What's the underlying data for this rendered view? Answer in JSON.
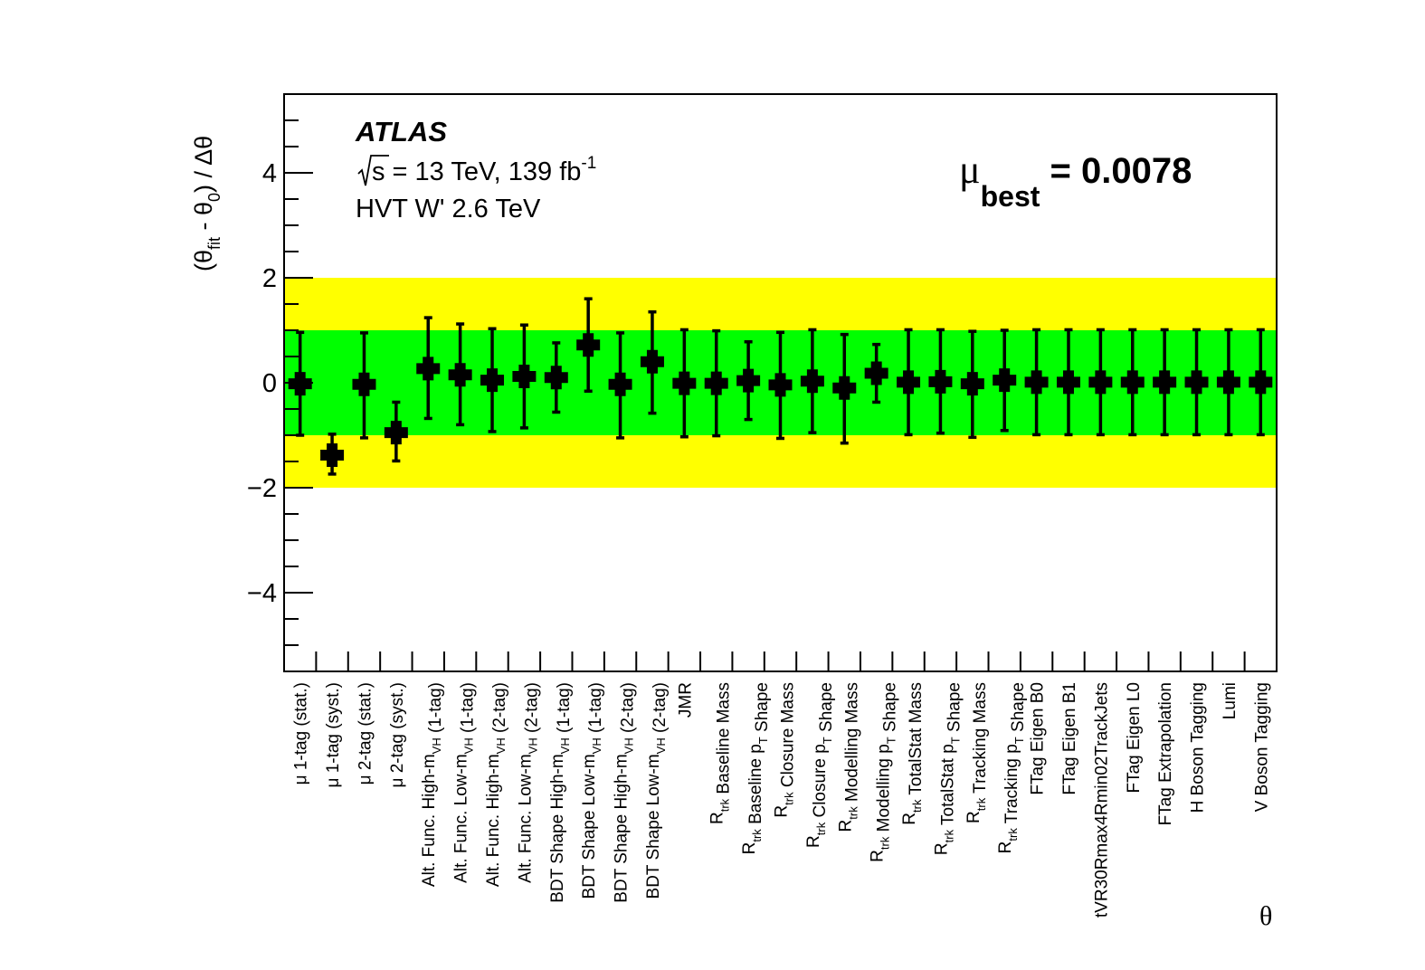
{
  "chart_data": {
    "type": "scatter",
    "experiment": "ATLAS",
    "energy_prefix": "s",
    "energy_text": " = 13 TeV, 139 fb",
    "energy_superscript": "-1",
    "signal": "HVT W' 2.6 TeV",
    "mu_symbol": "μ",
    "mu_subscript": "best",
    "mu_value_text": " = 0.0078",
    "ylabel": {
      "open": "(θ",
      "fit_sub": "fit",
      "mid": " - θ",
      "zero_sub": "0",
      "close": ") / Δθ"
    },
    "xlabel": "θ",
    "ylim": [
      -5.5,
      5.5
    ],
    "yticks": [
      -4,
      -2,
      0,
      2,
      4
    ],
    "ytick_labels": [
      "−4",
      "−2",
      "0",
      "2",
      "4"
    ],
    "bands": [
      {
        "name": "±2σ",
        "low": -2,
        "high": 2,
        "color": "#ffff00"
      },
      {
        "name": "±1σ",
        "low": -1,
        "high": 1,
        "color": "#00ff00"
      }
    ],
    "marker_color": "#000000",
    "frame_color": "#000000",
    "categories": [
      {
        "label": [
          {
            "t": "μ 1-tag (stat.)"
          }
        ]
      },
      {
        "label": [
          {
            "t": "μ 1-tag (syst.)"
          }
        ]
      },
      {
        "label": [
          {
            "t": "μ 2-tag (stat.)"
          }
        ]
      },
      {
        "label": [
          {
            "t": "μ 2-tag (syst.)"
          }
        ]
      },
      {
        "label": [
          {
            "t": "Alt. Func. High-m"
          },
          {
            "t": "VH",
            "s": "sub"
          },
          {
            "t": " (1-tag)"
          }
        ]
      },
      {
        "label": [
          {
            "t": "Alt. Func. Low-m"
          },
          {
            "t": "VH",
            "s": "sub"
          },
          {
            "t": " (1-tag)"
          }
        ]
      },
      {
        "label": [
          {
            "t": "Alt. Func. High-m"
          },
          {
            "t": "VH",
            "s": "sub"
          },
          {
            "t": " (2-tag)"
          }
        ]
      },
      {
        "label": [
          {
            "t": "Alt. Func. Low-m"
          },
          {
            "t": "VH",
            "s": "sub"
          },
          {
            "t": " (2-tag)"
          }
        ]
      },
      {
        "label": [
          {
            "t": "BDT Shape High-m"
          },
          {
            "t": "VH",
            "s": "sub"
          },
          {
            "t": " (1-tag)"
          }
        ]
      },
      {
        "label": [
          {
            "t": "BDT Shape Low-m"
          },
          {
            "t": "VH",
            "s": "sub"
          },
          {
            "t": " (1-tag)"
          }
        ]
      },
      {
        "label": [
          {
            "t": "BDT Shape High-m"
          },
          {
            "t": "VH",
            "s": "sub"
          },
          {
            "t": " (2-tag)"
          }
        ]
      },
      {
        "label": [
          {
            "t": "BDT Shape Low-m"
          },
          {
            "t": "VH",
            "s": "sub"
          },
          {
            "t": " (2-tag)"
          }
        ]
      },
      {
        "label": [
          {
            "t": "JMR"
          }
        ]
      },
      {
        "label": [
          {
            "t": "R"
          },
          {
            "t": "trk",
            "s": "sub"
          },
          {
            "t": " Baseline Mass"
          }
        ]
      },
      {
        "label": [
          {
            "t": "R"
          },
          {
            "t": "trk",
            "s": "sub"
          },
          {
            "t": " Baseline p"
          },
          {
            "t": "T",
            "s": "sub"
          },
          {
            "t": " Shape"
          }
        ]
      },
      {
        "label": [
          {
            "t": "R"
          },
          {
            "t": "trk",
            "s": "sub"
          },
          {
            "t": " Closure Mass"
          }
        ]
      },
      {
        "label": [
          {
            "t": "R"
          },
          {
            "t": "trk",
            "s": "sub"
          },
          {
            "t": " Closure p"
          },
          {
            "t": "T",
            "s": "sub"
          },
          {
            "t": " Shape"
          }
        ]
      },
      {
        "label": [
          {
            "t": "R"
          },
          {
            "t": "trk",
            "s": "sub"
          },
          {
            "t": " Modelling Mass"
          }
        ]
      },
      {
        "label": [
          {
            "t": "R"
          },
          {
            "t": "trk",
            "s": "sub"
          },
          {
            "t": " Modelling p"
          },
          {
            "t": "T",
            "s": "sub"
          },
          {
            "t": " Shape"
          }
        ]
      },
      {
        "label": [
          {
            "t": "R"
          },
          {
            "t": "trk",
            "s": "sub"
          },
          {
            "t": " TotalStat Mass"
          }
        ]
      },
      {
        "label": [
          {
            "t": "R"
          },
          {
            "t": "trk",
            "s": "sub"
          },
          {
            "t": " TotalStat p"
          },
          {
            "t": "T",
            "s": "sub"
          },
          {
            "t": " Shape"
          }
        ]
      },
      {
        "label": [
          {
            "t": "R"
          },
          {
            "t": "trk",
            "s": "sub"
          },
          {
            "t": " Tracking Mass"
          }
        ]
      },
      {
        "label": [
          {
            "t": "R"
          },
          {
            "t": "trk",
            "s": "sub"
          },
          {
            "t": " Tracking p"
          },
          {
            "t": "T",
            "s": "sub"
          },
          {
            "t": " Shape"
          }
        ]
      },
      {
        "label": [
          {
            "t": "FTag Eigen B0"
          }
        ]
      },
      {
        "label": [
          {
            "t": "FTag Eigen B1"
          }
        ]
      },
      {
        "label": [
          {
            "t": "tVR30Rmax4Rmin02TrackJets"
          }
        ]
      },
      {
        "label": [
          {
            "t": "FTag Eigen L0"
          }
        ]
      },
      {
        "label": [
          {
            "t": "FTag Extrapolation"
          }
        ]
      },
      {
        "label": [
          {
            "t": "H Boson Tagging"
          }
        ]
      },
      {
        "label": [
          {
            "t": "Lumi"
          }
        ]
      },
      {
        "label": [
          {
            "t": "V Boson Tagging"
          }
        ]
      }
    ],
    "values": [
      -0.02,
      -1.38,
      -0.03,
      -0.95,
      0.27,
      0.15,
      0.05,
      0.12,
      0.1,
      0.72,
      -0.03,
      0.4,
      -0.01,
      -0.01,
      0.04,
      -0.04,
      0.03,
      -0.1,
      0.18,
      0.01,
      0.02,
      -0.02,
      0.05,
      0.01,
      0.01,
      0.01,
      0.01,
      0.01,
      0.01,
      0.01,
      0.01
    ],
    "err_low": [
      0.98,
      0.36,
      1.02,
      0.54,
      0.95,
      0.95,
      0.98,
      0.98,
      0.66,
      0.88,
      1.02,
      0.98,
      1.02,
      1.0,
      0.74,
      1.02,
      0.98,
      1.05,
      0.55,
      1.0,
      0.98,
      1.02,
      0.96,
      1.0,
      1.0,
      1.0,
      1.0,
      1.0,
      1.0,
      1.0,
      1.0
    ],
    "err_high": [
      0.98,
      0.4,
      0.98,
      0.58,
      0.97,
      0.97,
      0.98,
      0.98,
      0.66,
      0.88,
      0.98,
      0.95,
      1.02,
      1.0,
      0.74,
      1.0,
      0.98,
      1.02,
      0.55,
      1.0,
      0.99,
      1.0,
      0.95,
      1.0,
      1.0,
      1.0,
      1.0,
      1.0,
      1.0,
      1.0,
      1.0
    ]
  }
}
